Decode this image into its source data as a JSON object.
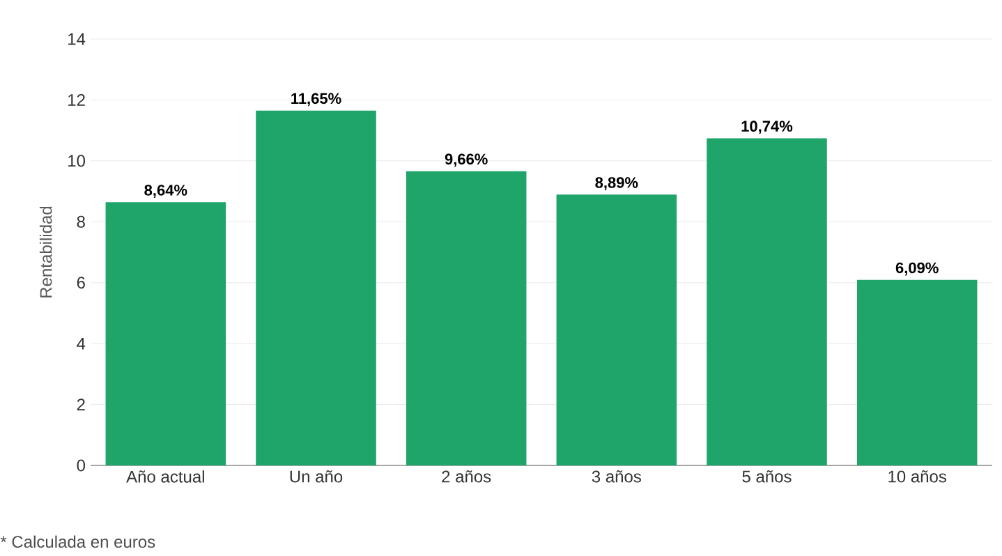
{
  "chart_data": {
    "type": "bar",
    "ylabel": "Rentabilidad",
    "categories": [
      "Año actual",
      "Un año",
      "2 años",
      "3 años",
      "5 años",
      "10 años"
    ],
    "values": [
      8.64,
      11.65,
      9.66,
      8.89,
      10.74,
      6.09
    ],
    "value_labels": [
      "8,64%",
      "11,65%",
      "9,66%",
      "8,89%",
      "10,74%",
      "6,09%"
    ],
    "color": "#1fa56a",
    "ylim": [
      0,
      14
    ],
    "yticks": [
      0,
      2,
      4,
      6,
      8,
      10,
      12,
      14
    ],
    "grid": "y",
    "annotations": [
      "* Calculada en euros"
    ]
  }
}
